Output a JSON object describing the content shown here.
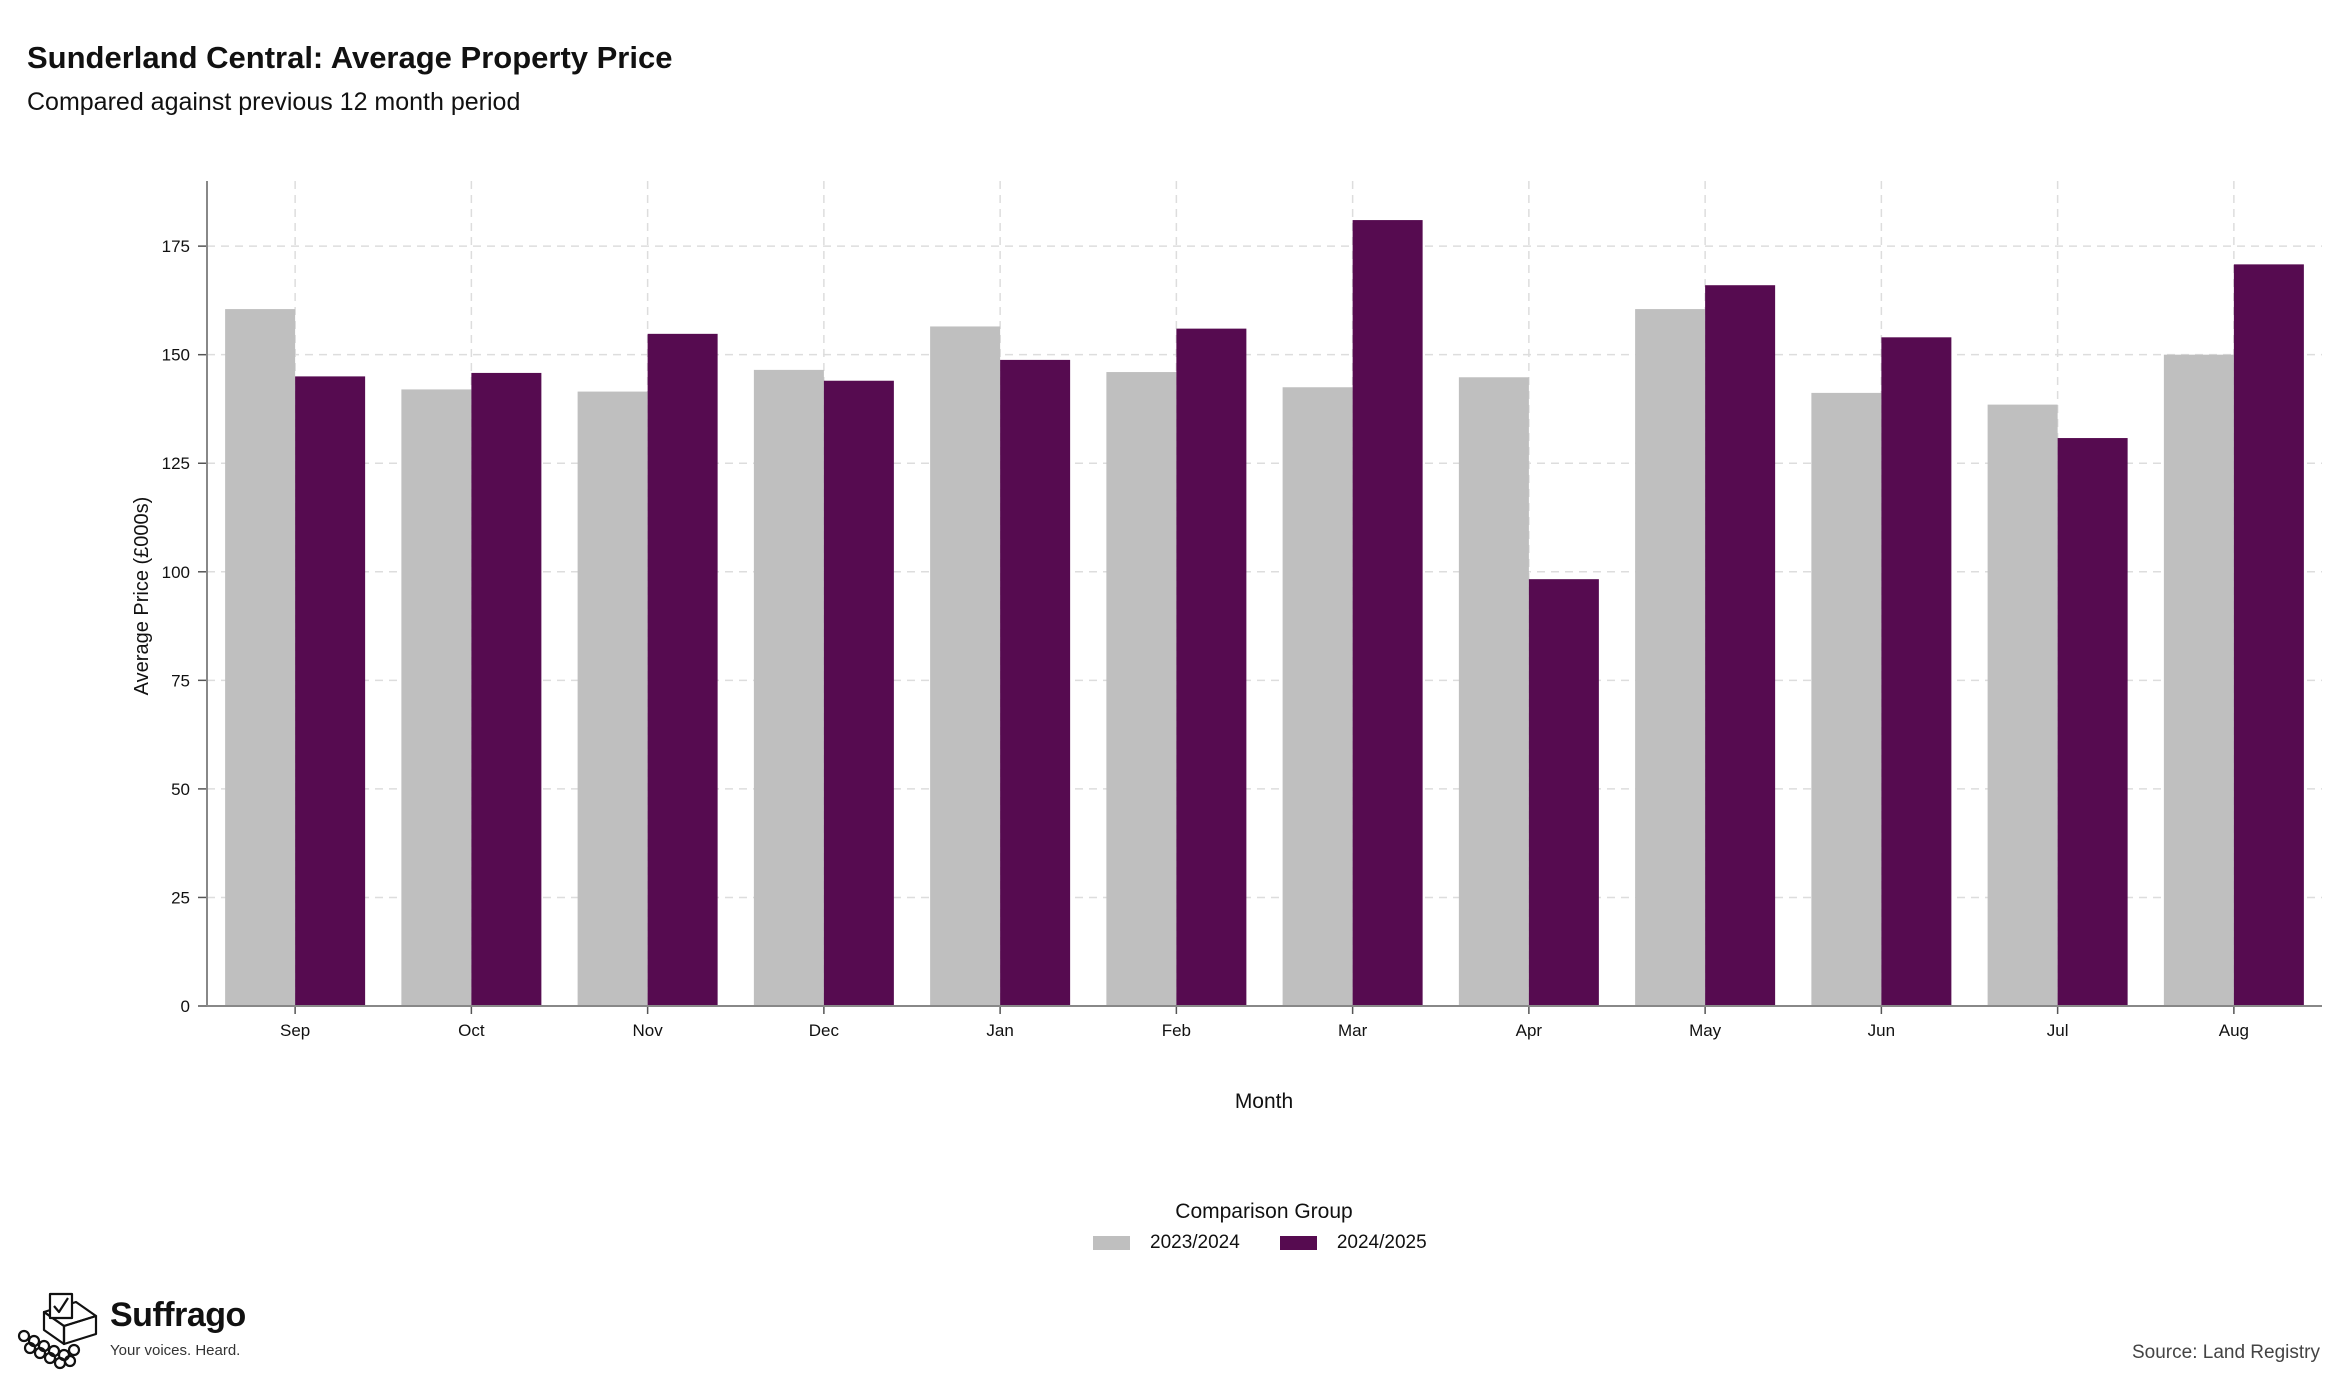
{
  "header": {
    "title": "Sunderland Central: Average Property Price",
    "subtitle": "Compared against previous 12 month period"
  },
  "legend": {
    "title": "Comparison Group",
    "items": [
      {
        "label": "2023/2024",
        "color": "#bfbfbf"
      },
      {
        "label": "2024/2025",
        "color": "#560b50"
      }
    ]
  },
  "brand": {
    "name": "Suffrago",
    "tagline": "Your voices. Heard.",
    "icon": "ballot-box-icon"
  },
  "footer": {
    "source": "Source: Land Registry"
  },
  "chart_data": {
    "type": "bar",
    "xlabel": "Month",
    "ylabel": "Average Price (£000s)",
    "categories": [
      "Sep",
      "Oct",
      "Nov",
      "Dec",
      "Jan",
      "Feb",
      "Mar",
      "Apr",
      "May",
      "Jun",
      "Jul",
      "Aug"
    ],
    "series": [
      {
        "name": "2023/2024",
        "color": "#bfbfbf",
        "values": [
          160.5,
          142,
          141.5,
          146.5,
          156.5,
          146,
          142.5,
          144.8,
          160.5,
          141.2,
          138.5,
          150
        ]
      },
      {
        "name": "2024/2025",
        "color": "#560b50",
        "values": [
          145,
          145.8,
          154.8,
          144,
          148.8,
          156,
          181,
          98.3,
          166,
          154,
          130.8,
          170.8
        ]
      }
    ],
    "ylim": [
      0,
      190
    ],
    "yticks": [
      0,
      25,
      50,
      75,
      100,
      125,
      150,
      175
    ],
    "grid": true,
    "legend_position": "bottom"
  }
}
